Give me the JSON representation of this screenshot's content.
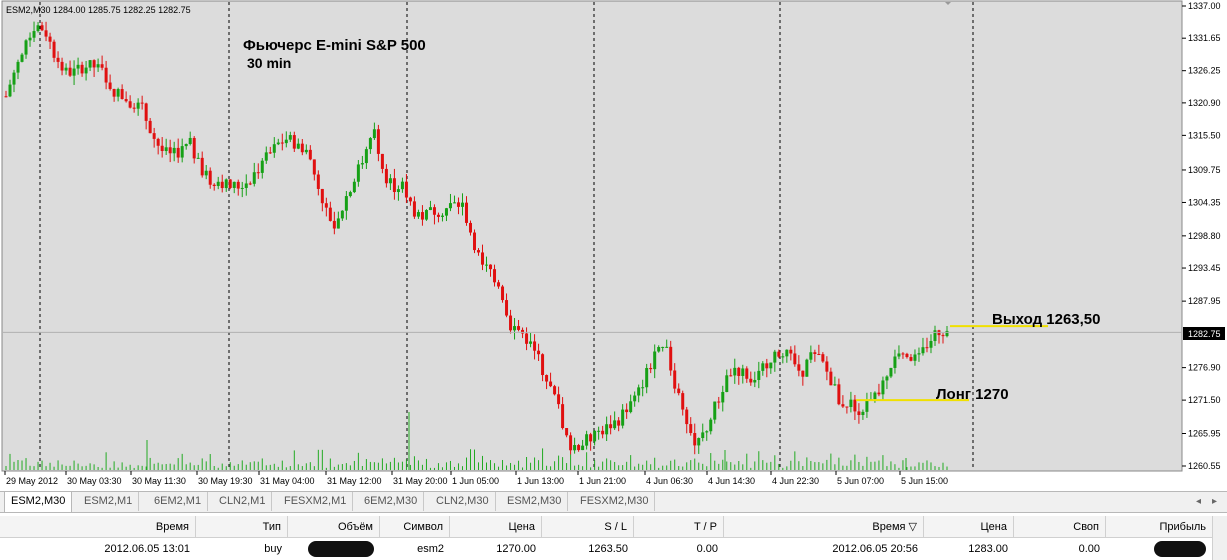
{
  "header": {
    "text": "ESM2,M30  1284.00 1285.75 1282.25 1282.75"
  },
  "chart_data": {
    "type": "candlestick",
    "title": "Фьючерс E-mini S&P 500",
    "subtitle": "30 min",
    "y_ticks": [
      "1337.00",
      "1331.65",
      "1326.25",
      "1320.90",
      "1315.50",
      "1309.75",
      "1304.35",
      "1298.80",
      "1293.45",
      "1287.95",
      "1276.90",
      "1271.50",
      "1265.95",
      "1260.55"
    ],
    "ylim": [
      1260.55,
      1337.0
    ],
    "current_price_label": "1282.75",
    "current_price": 1282.75,
    "x_ticks": [
      "29 May 2012",
      "30 May 03:30",
      "30 May 11:30",
      "30 May 19:30",
      "31 May 04:00",
      "31 May 12:00",
      "31 May 20:00",
      "1 Jun 05:00",
      "1 Jun 13:00",
      "1 Jun 21:00",
      "4 Jun 06:30",
      "4 Jun 14:30",
      "4 Jun 22:30",
      "5 Jun 07:00",
      "5 Jun 15:00"
    ],
    "annotations": [
      {
        "text": "Выход 1263,50",
        "price": 1283.8
      },
      {
        "text": "Лонг 1270",
        "price": 1271.5
      }
    ],
    "colors": {
      "up": "#16a016",
      "down": "#e01010",
      "volume": "#22aa22",
      "level_line": "#f0e000",
      "background": "#dcdcdc"
    },
    "price_path": [
      1322,
      1327,
      1330,
      1334,
      1333,
      1329,
      1326,
      1326,
      1327,
      1327,
      1326,
      1323,
      1322,
      1321,
      1320,
      1316,
      1313,
      1312,
      1313,
      1314,
      1310,
      1308,
      1308,
      1307,
      1307,
      1308,
      1310,
      1312,
      1314,
      1315,
      1314,
      1313,
      1308,
      1303,
      1300,
      1305,
      1309,
      1312,
      1316,
      1309,
      1307,
      1307,
      1303,
      1302,
      1303,
      1303,
      1304,
      1304,
      1299,
      1294,
      1293,
      1290,
      1284,
      1283,
      1281,
      1278,
      1274,
      1270,
      1264,
      1264,
      1265,
      1266,
      1267,
      1268,
      1270,
      1272,
      1276,
      1279,
      1280,
      1274,
      1269,
      1264,
      1266,
      1270,
      1274,
      1277,
      1276,
      1275,
      1277,
      1279,
      1280,
      1278,
      1276,
      1279,
      1278,
      1275,
      1271,
      1271,
      1270,
      1271,
      1273,
      1276,
      1280,
      1279,
      1278,
      1281,
      1283,
      1283
    ]
  },
  "tabs": [
    "ESM2,M30",
    "ESM2,M1",
    "6EM2,M1",
    "CLN2,M1",
    "FESXM2,M1",
    "6EM2,M30",
    "CLN2,M30",
    "ESM2,M30",
    "FESXM2,M30"
  ],
  "tab_arrows": {
    "left": "◂",
    "right": "▸"
  },
  "table": {
    "headers": [
      "Время",
      "Тип",
      "Объём",
      "Символ",
      "Цена",
      "S / L",
      "T / P",
      "Время ▽",
      "Цена",
      "Своп",
      "Прибыль"
    ],
    "row": [
      "2012.06.05 13:01",
      "buy",
      "",
      "esm2",
      "1270.00",
      "1263.50",
      "0.00",
      "2012.06.05 20:56",
      "1283.00",
      "0.00",
      ""
    ]
  }
}
